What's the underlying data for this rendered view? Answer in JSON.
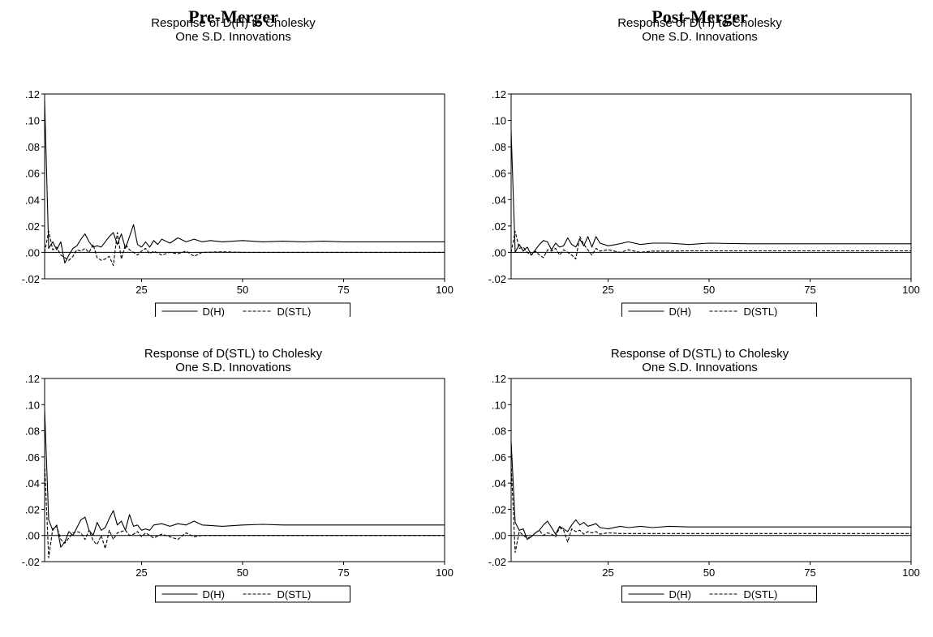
{
  "headings": {
    "pre": "Pre-Merger",
    "post": "Post-Merger"
  },
  "legend": {
    "s1": "D(H)",
    "s2": "D(STL)"
  },
  "chart_data": [
    {
      "type": "line",
      "panel": "Pre-Merger, top",
      "title": "Response of D(H) to Cholesky",
      "subtitle": "One S.D. Innovations",
      "xlim": [
        1,
        100
      ],
      "ylim": [
        -0.02,
        0.12
      ],
      "xticks": [
        25,
        50,
        75,
        100
      ],
      "yticks": [
        -0.02,
        0.0,
        0.02,
        0.04,
        0.06,
        0.08,
        0.1,
        0.12
      ],
      "ytick_labels": [
        "-.02",
        ".00",
        ".02",
        ".04",
        ".06",
        ".08",
        ".10",
        ".12"
      ],
      "legend_position": "bottom-center",
      "series": [
        {
          "name": "D(H)",
          "style": "solid",
          "x": [
            1,
            2,
            3,
            4,
            5,
            6,
            7,
            8,
            9,
            10,
            11,
            12,
            13,
            14,
            15,
            16,
            17,
            18,
            19,
            20,
            21,
            22,
            23,
            24,
            25,
            26,
            27,
            28,
            29,
            30,
            32,
            34,
            36,
            38,
            40,
            42,
            45,
            50,
            55,
            60,
            65,
            70,
            75,
            80,
            90,
            100
          ],
          "y": [
            0.115,
            0.003,
            0.008,
            0.002,
            0.008,
            -0.008,
            -0.002,
            0.003,
            0.005,
            0.01,
            0.014,
            0.008,
            0.004,
            0.005,
            0.004,
            0.008,
            0.012,
            0.015,
            0.006,
            0.014,
            0.003,
            0.012,
            0.021,
            0.006,
            0.004,
            0.008,
            0.004,
            0.009,
            0.006,
            0.01,
            0.007,
            0.011,
            0.008,
            0.01,
            0.008,
            0.009,
            0.008,
            0.009,
            0.008,
            0.0085,
            0.008,
            0.0085,
            0.008,
            0.008,
            0.008,
            0.008
          ]
        },
        {
          "name": "D(STL)",
          "style": "dashed",
          "x": [
            1,
            2,
            3,
            4,
            5,
            6,
            7,
            8,
            9,
            10,
            11,
            12,
            13,
            14,
            15,
            16,
            17,
            18,
            19,
            20,
            21,
            22,
            23,
            24,
            25,
            26,
            27,
            28,
            30,
            32,
            34,
            36,
            38,
            40,
            45,
            50,
            60,
            70,
            80,
            90,
            100
          ],
          "y": [
            0.0,
            0.016,
            0.002,
            0.004,
            -0.002,
            -0.004,
            -0.006,
            -0.003,
            0.002,
            0.001,
            0.003,
            0.0,
            0.006,
            -0.004,
            -0.006,
            -0.005,
            -0.003,
            -0.01,
            0.015,
            -0.005,
            0.006,
            0.002,
            0.0,
            -0.002,
            0.001,
            0.003,
            -0.001,
            0.001,
            -0.002,
            0.0,
            -0.001,
            0.001,
            -0.003,
            0.0,
            0.0005,
            0.0,
            0.0,
            0.0,
            0.0,
            0.0,
            0.0
          ]
        }
      ]
    },
    {
      "type": "line",
      "panel": "Post-Merger, top",
      "title": "Response of D(H) to Cholesky",
      "subtitle": "One S.D. Innovations",
      "xlim": [
        1,
        100
      ],
      "ylim": [
        -0.02,
        0.12
      ],
      "xticks": [
        25,
        50,
        75,
        100
      ],
      "yticks": [
        -0.02,
        0.0,
        0.02,
        0.04,
        0.06,
        0.08,
        0.1,
        0.12
      ],
      "ytick_labels": [
        "-.02",
        ".00",
        ".02",
        ".04",
        ".06",
        ".08",
        ".10",
        ".12"
      ],
      "legend_position": "bottom-center",
      "series": [
        {
          "name": "D(H)",
          "style": "solid",
          "x": [
            1,
            2,
            3,
            4,
            5,
            6,
            7,
            8,
            9,
            10,
            11,
            12,
            13,
            14,
            15,
            16,
            17,
            18,
            19,
            20,
            21,
            22,
            23,
            25,
            27,
            30,
            33,
            36,
            40,
            45,
            50,
            60,
            70,
            80,
            90,
            100
          ],
          "y": [
            0.092,
            0.0,
            0.006,
            0.001,
            0.004,
            -0.002,
            0.002,
            0.006,
            0.009,
            0.008,
            0.002,
            0.007,
            0.004,
            0.005,
            0.011,
            0.006,
            0.004,
            0.01,
            0.005,
            0.012,
            0.004,
            0.012,
            0.007,
            0.005,
            0.006,
            0.008,
            0.006,
            0.007,
            0.007,
            0.006,
            0.007,
            0.0065,
            0.0065,
            0.0065,
            0.0065,
            0.0065
          ]
        },
        {
          "name": "D(STL)",
          "style": "dashed",
          "x": [
            1,
            2,
            3,
            4,
            5,
            6,
            7,
            8,
            9,
            10,
            11,
            12,
            13,
            14,
            15,
            16,
            17,
            18,
            19,
            20,
            21,
            22,
            23,
            25,
            28,
            30,
            33,
            36,
            40,
            45,
            50,
            60,
            70,
            80,
            90,
            100
          ],
          "y": [
            0.0,
            0.016,
            0.003,
            0.004,
            0.0,
            -0.002,
            0.001,
            -0.002,
            -0.004,
            0.002,
            0.001,
            0.003,
            -0.002,
            0.002,
            0.0,
            -0.002,
            -0.005,
            0.012,
            0.006,
            0.002,
            -0.002,
            0.003,
            0.001,
            0.002,
            0.0,
            0.002,
            0.0,
            0.001,
            0.001,
            0.0012,
            0.0012,
            0.0012,
            0.0012,
            0.0012,
            0.0012,
            0.0012
          ]
        }
      ]
    },
    {
      "type": "line",
      "panel": "Pre-Merger, bottom",
      "title": "Response of D(STL) to Cholesky",
      "subtitle": "One S.D. Innovations",
      "xlim": [
        1,
        100
      ],
      "ylim": [
        -0.02,
        0.12
      ],
      "xticks": [
        25,
        50,
        75,
        100
      ],
      "yticks": [
        -0.02,
        0.0,
        0.02,
        0.04,
        0.06,
        0.08,
        0.1,
        0.12
      ],
      "ytick_labels": [
        "-.02",
        ".00",
        ".02",
        ".04",
        ".06",
        ".08",
        ".10",
        ".12"
      ],
      "legend_position": "bottom-center",
      "series": [
        {
          "name": "D(H)",
          "style": "solid",
          "x": [
            1,
            2,
            3,
            4,
            5,
            6,
            7,
            8,
            9,
            10,
            11,
            12,
            13,
            14,
            15,
            16,
            17,
            18,
            19,
            20,
            21,
            22,
            23,
            24,
            25,
            26,
            27,
            28,
            30,
            32,
            34,
            36,
            38,
            40,
            45,
            50,
            55,
            60,
            65,
            70,
            75,
            80,
            90,
            100
          ],
          "y": [
            0.096,
            0.012,
            0.004,
            0.008,
            -0.009,
            -0.005,
            0.003,
            0.0,
            0.006,
            0.012,
            0.014,
            0.004,
            0.0,
            0.01,
            0.004,
            0.006,
            0.013,
            0.019,
            0.008,
            0.011,
            0.004,
            0.016,
            0.007,
            0.008,
            0.004,
            0.005,
            0.004,
            0.008,
            0.009,
            0.007,
            0.009,
            0.008,
            0.011,
            0.008,
            0.007,
            0.008,
            0.0085,
            0.008,
            0.008,
            0.008,
            0.008,
            0.008,
            0.008,
            0.008
          ]
        },
        {
          "name": "D(STL)",
          "style": "dashed",
          "x": [
            1,
            2,
            3,
            4,
            5,
            6,
            7,
            8,
            9,
            10,
            11,
            12,
            13,
            14,
            15,
            16,
            17,
            18,
            19,
            20,
            21,
            22,
            23,
            24,
            25,
            26,
            27,
            28,
            30,
            32,
            34,
            36,
            38,
            40,
            45,
            50,
            60,
            70,
            80,
            90,
            100
          ],
          "y": [
            0.055,
            -0.017,
            0.005,
            0.007,
            -0.003,
            -0.006,
            -0.002,
            0.002,
            0.003,
            0.002,
            -0.003,
            0.004,
            -0.004,
            -0.007,
            0.0,
            -0.01,
            0.004,
            -0.003,
            0.002,
            0.003,
            0.004,
            0.0,
            0.001,
            0.003,
            -0.001,
            0.002,
            0.0,
            -0.002,
            0.001,
            -0.001,
            -0.003,
            0.002,
            -0.001,
            0.0,
            0.0,
            0.0,
            0.0,
            0.0,
            0.0,
            0.0,
            0.0
          ]
        }
      ]
    },
    {
      "type": "line",
      "panel": "Post-Merger, bottom",
      "title": "Response of D(STL) to Cholesky",
      "subtitle": "One S.D. Innovations",
      "xlim": [
        1,
        100
      ],
      "ylim": [
        -0.02,
        0.12
      ],
      "xticks": [
        25,
        50,
        75,
        100
      ],
      "yticks": [
        -0.02,
        0.0,
        0.02,
        0.04,
        0.06,
        0.08,
        0.1,
        0.12
      ],
      "ytick_labels": [
        "-.02",
        ".00",
        ".02",
        ".04",
        ".06",
        ".08",
        ".10",
        ".12"
      ],
      "legend_position": "bottom-center",
      "series": [
        {
          "name": "D(H)",
          "style": "solid",
          "x": [
            1,
            2,
            3,
            4,
            5,
            6,
            7,
            8,
            9,
            10,
            11,
            12,
            13,
            14,
            15,
            16,
            17,
            18,
            19,
            20,
            21,
            22,
            23,
            25,
            28,
            30,
            33,
            36,
            40,
            45,
            50,
            60,
            70,
            80,
            90,
            100
          ],
          "y": [
            0.072,
            0.01,
            0.004,
            0.005,
            -0.003,
            -0.001,
            0.002,
            0.004,
            0.008,
            0.011,
            0.006,
            0.001,
            0.007,
            0.005,
            0.003,
            0.008,
            0.012,
            0.008,
            0.01,
            0.007,
            0.008,
            0.009,
            0.006,
            0.005,
            0.007,
            0.006,
            0.007,
            0.006,
            0.007,
            0.0065,
            0.0065,
            0.0065,
            0.0065,
            0.0065,
            0.0065,
            0.0065
          ]
        },
        {
          "name": "D(STL)",
          "style": "dashed",
          "x": [
            1,
            2,
            3,
            4,
            5,
            6,
            7,
            8,
            9,
            10,
            11,
            12,
            13,
            14,
            15,
            16,
            17,
            18,
            19,
            20,
            21,
            22,
            23,
            25,
            28,
            30,
            35,
            40,
            45,
            50,
            60,
            70,
            80,
            90,
            100
          ],
          "y": [
            0.055,
            -0.013,
            0.003,
            0.0,
            -0.002,
            -0.001,
            0.002,
            0.004,
            0.0,
            0.002,
            0.001,
            -0.001,
            0.006,
            0.004,
            -0.005,
            0.005,
            0.003,
            0.004,
            0.001,
            0.003,
            0.002,
            0.003,
            0.001,
            0.002,
            0.0015,
            0.0015,
            0.0015,
            0.0015,
            0.0015,
            0.0015,
            0.0015,
            0.0015,
            0.0015,
            0.0015,
            0.0015
          ]
        }
      ]
    }
  ]
}
